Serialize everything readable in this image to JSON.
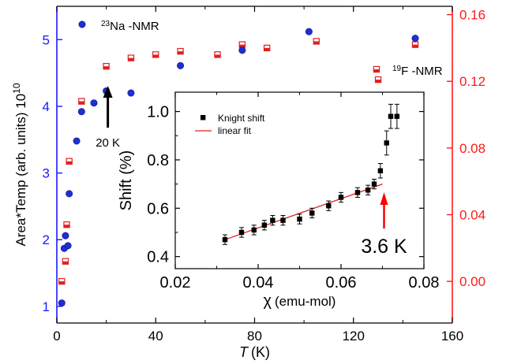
{
  "chart_data": [
    {
      "type": "scatter",
      "role": "main",
      "xlabel": "T",
      "xlabel_unit": "(K)",
      "ylabel_left": "Area*Temp (arb. units) 10",
      "ylabel_left_exp": "10",
      "xlim": [
        0,
        160
      ],
      "ylim_left": [
        0.75,
        5.5
      ],
      "ylim_right": [
        -0.025,
        0.165
      ],
      "x_ticks": [
        0,
        40,
        80,
        120,
        160
      ],
      "y_left_ticks": [
        1,
        2,
        3,
        4,
        5
      ],
      "y_right_ticks": [
        0.0,
        0.04,
        0.08,
        0.12,
        0.16
      ],
      "y_right_tick_labels": [
        "0.00",
        "0.04",
        "0.08",
        "0.12",
        "0.16"
      ],
      "colors": {
        "left_axis": "#1a1aff",
        "right_axis": "#ff1a1a",
        "na_marker": "#1f2fd0",
        "f_marker": "#e02020"
      },
      "series": [
        {
          "name": "Na -NMR",
          "name_prefix_sup": "23",
          "axis": "left",
          "marker": "filled-circle",
          "x": [
            2,
            3,
            3.5,
            4.5,
            5,
            8,
            10,
            15,
            20,
            30,
            50,
            75,
            102,
            145
          ],
          "y": [
            1.05,
            1.87,
            2.06,
            1.91,
            2.69,
            3.48,
            3.92,
            4.05,
            4.23,
            4.2,
            4.61,
            4.84,
            5.12,
            5.02
          ]
        },
        {
          "name": "F -NMR",
          "name_prefix_sup": "19",
          "axis": "right",
          "marker": "half-filled-square",
          "x": [
            2,
            3.5,
            4,
            5,
            10,
            20,
            30,
            40,
            50,
            65,
            75,
            85,
            105,
            130,
            145
          ],
          "y": [
            0.0,
            0.012,
            0.034,
            0.072,
            0.108,
            0.129,
            0.134,
            0.136,
            0.138,
            0.136,
            0.142,
            0.14,
            0.144,
            0.121,
            0.142
          ]
        }
      ],
      "annotation": {
        "text": "20 K",
        "x": 20,
        "arrow": "up"
      }
    },
    {
      "type": "scatter",
      "role": "inset",
      "xlabel": "χ",
      "xlabel_unit": "(emu-mol)",
      "ylabel": "Shift (%)",
      "xlim": [
        0.02,
        0.08
      ],
      "ylim": [
        0.35,
        1.08
      ],
      "x_ticks": [
        0.02,
        0.04,
        0.06,
        0.08
      ],
      "y_ticks": [
        0.4,
        0.6,
        0.8,
        1.0
      ],
      "y_tick_labels": [
        "0.4",
        "0.6",
        "0.8",
        "1.0"
      ],
      "legend": {
        "position": "top-left",
        "entries": [
          "Knight shift",
          "linear fit"
        ]
      },
      "series": [
        {
          "name": "Knight shift",
          "marker": "filled-square",
          "x": [
            0.032,
            0.036,
            0.039,
            0.0415,
            0.0435,
            0.046,
            0.05,
            0.053,
            0.057,
            0.06,
            0.064,
            0.0665,
            0.068,
            0.0695,
            0.071,
            0.072,
            0.0735
          ],
          "y": [
            0.47,
            0.5,
            0.51,
            0.53,
            0.55,
            0.55,
            0.555,
            0.58,
            0.61,
            0.645,
            0.665,
            0.675,
            0.7,
            0.755,
            0.87,
            0.98,
            0.98
          ],
          "err": [
            0.02,
            0.02,
            0.02,
            0.02,
            0.02,
            0.02,
            0.02,
            0.02,
            0.02,
            0.02,
            0.02,
            0.02,
            0.02,
            0.03,
            0.05,
            0.05,
            0.05
          ]
        },
        {
          "name": "linear fit",
          "type": "line",
          "color": "#e02020",
          "x": [
            0.032,
            0.07
          ],
          "y": [
            0.47,
            0.7
          ]
        }
      ],
      "annotation": {
        "text": "3.6 K",
        "x": 0.07,
        "arrow": "up"
      }
    }
  ]
}
